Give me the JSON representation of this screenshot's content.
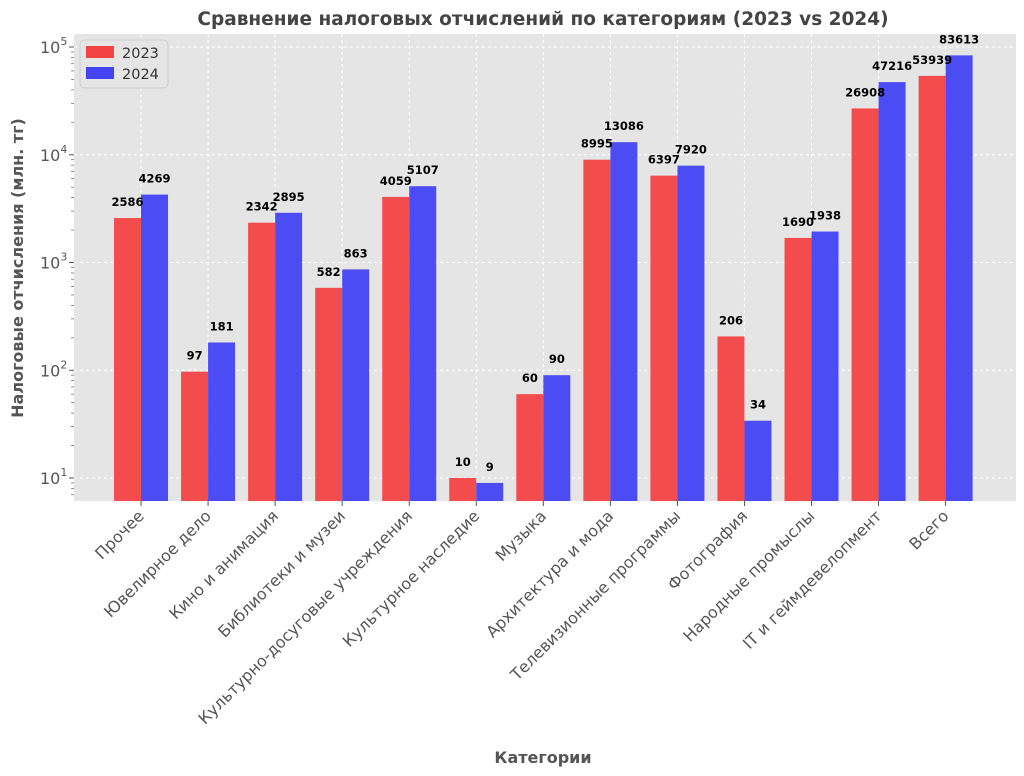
{
  "chart_data": {
    "type": "bar",
    "title": "Сравнение налоговых отчислений по категориям (2023 vs 2024)",
    "xlabel": "Категории",
    "ylabel": "Налоговые отчисления (млн. тг)",
    "yscale": "log",
    "ylim": [
      6,
      100000
    ],
    "yticks": [
      {
        "value": 10,
        "base": "10",
        "exp": "1"
      },
      {
        "value": 100,
        "base": "10",
        "exp": "2"
      },
      {
        "value": 1000,
        "base": "10",
        "exp": "3"
      },
      {
        "value": 10000,
        "base": "10",
        "exp": "4"
      },
      {
        "value": 100000,
        "base": "10",
        "exp": "5"
      }
    ],
    "grid": true,
    "legend_position": "top-left",
    "categories": [
      "Прочее",
      "Ювелирное дело",
      "Кино и анимация",
      "Библиотеки и музеи",
      "Культурно-досуговые учреждения",
      "Культурное наследие",
      "Музыка",
      "Архитектура и мода",
      "Телевизионные программы",
      "Фотография",
      "Народные промыслы",
      "IT и геймдевелопмент",
      "Всего"
    ],
    "series": [
      {
        "name": "2023",
        "color": "#f44343",
        "values": [
          2586,
          97,
          2342,
          582,
          4059,
          10,
          60,
          8995,
          6397,
          206,
          1690,
          26908,
          53939
        ]
      },
      {
        "name": "2024",
        "color": "#4343f4",
        "values": [
          4269,
          181,
          2895,
          863,
          5107,
          9,
          90,
          13086,
          7920,
          34,
          1938,
          47216,
          83613
        ]
      }
    ],
    "colors": {
      "background": "#e5e5e5",
      "grid": "#ffffff",
      "text": "#444444"
    }
  }
}
